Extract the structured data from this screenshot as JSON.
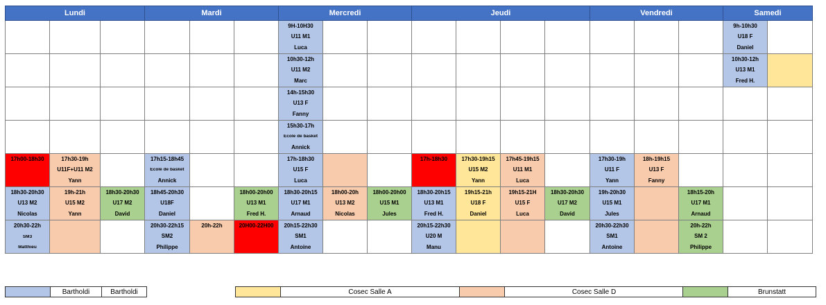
{
  "days": [
    "Lundi",
    "Mardi",
    "Mercredi",
    "Jeudi",
    "Vendredi",
    "Samedi"
  ],
  "colors": {
    "bartholdi": "#b4c6e7",
    "cosec_a": "#ffe699",
    "cosec_d": "#f8cbad",
    "brunstatt": "#a9d08e",
    "red": "#ff0000"
  },
  "rows": [
    [
      {
        "c": "",
        "t": []
      },
      {
        "c": "",
        "t": []
      },
      {
        "c": "",
        "t": []
      },
      {
        "c": "",
        "t": []
      },
      {
        "c": "",
        "t": []
      },
      {
        "c": "",
        "t": []
      },
      {
        "c": "bl",
        "t": [
          "9H-10H30",
          "U11 M1",
          "Luca"
        ]
      },
      {
        "c": "",
        "t": []
      },
      {
        "c": "",
        "t": []
      },
      {
        "c": "",
        "t": []
      },
      {
        "c": "",
        "t": []
      },
      {
        "c": "",
        "t": []
      },
      {
        "c": "",
        "t": []
      },
      {
        "c": "",
        "t": []
      },
      {
        "c": "",
        "t": []
      },
      {
        "c": "",
        "t": []
      },
      {
        "c": "bl",
        "t": [
          "9h-10h30",
          "U18 F",
          "Daniel"
        ]
      },
      {
        "c": "",
        "t": []
      }
    ],
    [
      {
        "c": "",
        "t": []
      },
      {
        "c": "",
        "t": []
      },
      {
        "c": "",
        "t": []
      },
      {
        "c": "",
        "t": []
      },
      {
        "c": "",
        "t": []
      },
      {
        "c": "",
        "t": []
      },
      {
        "c": "bl",
        "t": [
          "10h30-12h",
          "U11 M2",
          "Marc"
        ]
      },
      {
        "c": "",
        "t": []
      },
      {
        "c": "",
        "t": []
      },
      {
        "c": "",
        "t": []
      },
      {
        "c": "",
        "t": []
      },
      {
        "c": "",
        "t": []
      },
      {
        "c": "",
        "t": []
      },
      {
        "c": "",
        "t": []
      },
      {
        "c": "",
        "t": []
      },
      {
        "c": "",
        "t": []
      },
      {
        "c": "bl",
        "t": [
          "10h30-12h",
          "U13 M1",
          "Fred H."
        ]
      },
      {
        "c": "ye",
        "t": []
      }
    ],
    [
      {
        "c": "",
        "t": []
      },
      {
        "c": "",
        "t": []
      },
      {
        "c": "",
        "t": []
      },
      {
        "c": "",
        "t": []
      },
      {
        "c": "",
        "t": []
      },
      {
        "c": "",
        "t": []
      },
      {
        "c": "bl",
        "t": [
          "14h-15h30",
          "U13 F",
          "Fanny"
        ]
      },
      {
        "c": "",
        "t": []
      },
      {
        "c": "",
        "t": []
      },
      {
        "c": "",
        "t": []
      },
      {
        "c": "",
        "t": []
      },
      {
        "c": "",
        "t": []
      },
      {
        "c": "",
        "t": []
      },
      {
        "c": "",
        "t": []
      },
      {
        "c": "",
        "t": []
      },
      {
        "c": "",
        "t": []
      },
      {
        "c": "",
        "t": []
      },
      {
        "c": "",
        "t": []
      }
    ],
    [
      {
        "c": "",
        "t": []
      },
      {
        "c": "",
        "t": []
      },
      {
        "c": "",
        "t": []
      },
      {
        "c": "",
        "t": []
      },
      {
        "c": "",
        "t": []
      },
      {
        "c": "",
        "t": []
      },
      {
        "c": "bl",
        "t": [
          "15h30-17h",
          "Ecole de basket",
          "Annick"
        ],
        "s": 1
      },
      {
        "c": "",
        "t": []
      },
      {
        "c": "",
        "t": []
      },
      {
        "c": "",
        "t": []
      },
      {
        "c": "",
        "t": []
      },
      {
        "c": "",
        "t": []
      },
      {
        "c": "",
        "t": []
      },
      {
        "c": "",
        "t": []
      },
      {
        "c": "",
        "t": []
      },
      {
        "c": "",
        "t": []
      },
      {
        "c": "",
        "t": []
      },
      {
        "c": "",
        "t": []
      }
    ],
    [
      {
        "c": "rd",
        "t": [
          "17h00-18h30"
        ],
        "top": 1
      },
      {
        "c": "pe",
        "t": [
          "17h30-19h",
          "U11F+U11 M2",
          "Yann"
        ]
      },
      {
        "c": "",
        "t": []
      },
      {
        "c": "bl",
        "t": [
          "17h15-18h45",
          "Ecole de basket",
          "Annick"
        ],
        "s": 1
      },
      {
        "c": "",
        "t": []
      },
      {
        "c": "",
        "t": []
      },
      {
        "c": "bl",
        "t": [
          "17h-18h30",
          "U15 F",
          "Luca"
        ]
      },
      {
        "c": "pe",
        "t": []
      },
      {
        "c": "",
        "t": []
      },
      {
        "c": "rd",
        "t": [
          "17h-18h30"
        ],
        "top": 1
      },
      {
        "c": "ye",
        "t": [
          "17h30-19h15",
          "U15 M2",
          "Yann"
        ]
      },
      {
        "c": "pe",
        "t": [
          "17h45-19h15",
          "U11 M1",
          "Luca"
        ]
      },
      {
        "c": "",
        "t": []
      },
      {
        "c": "bl",
        "t": [
          "17h30-19h",
          "U11 F",
          "Yann"
        ]
      },
      {
        "c": "pe",
        "t": [
          "18h-19h15",
          "U13 F",
          "Fanny"
        ]
      },
      {
        "c": "",
        "t": []
      },
      {
        "c": "",
        "t": []
      },
      {
        "c": "",
        "t": []
      }
    ],
    [
      {
        "c": "bl",
        "t": [
          "18h30-20h30",
          "U13 M2",
          "Nicolas"
        ]
      },
      {
        "c": "pe",
        "t": [
          "19h-21h",
          "U15 M2",
          "Yann"
        ]
      },
      {
        "c": "gr",
        "t": [
          "18h30-20h30",
          "U17 M2",
          "David"
        ]
      },
      {
        "c": "bl",
        "t": [
          "18h45-20h30",
          "U18F",
          "Daniel"
        ]
      },
      {
        "c": "",
        "t": []
      },
      {
        "c": "gr",
        "t": [
          "18h00-20h00",
          "U13 M1",
          "Fred H."
        ]
      },
      {
        "c": "bl",
        "t": [
          "18h30-20h15",
          "U17 M1",
          "Arnaud"
        ]
      },
      {
        "c": "pe",
        "t": [
          "18h00-20h",
          "U13 M2",
          "Nicolas"
        ]
      },
      {
        "c": "gr",
        "t": [
          "18h00-20h00",
          "U15 M1",
          "Jules"
        ]
      },
      {
        "c": "bl",
        "t": [
          "18h30-20h15",
          "U13 M1",
          "Fred H."
        ]
      },
      {
        "c": "ye",
        "t": [
          "19h15-21h",
          "U18 F",
          "Daniel"
        ]
      },
      {
        "c": "pe",
        "t": [
          "19h15-21H",
          "U15 F",
          "Luca"
        ]
      },
      {
        "c": "gr",
        "t": [
          "18h30-20h30",
          "U17 M2",
          "David"
        ]
      },
      {
        "c": "bl",
        "t": [
          "19h-20h30",
          "U15 M1",
          "Jules"
        ]
      },
      {
        "c": "pe",
        "t": []
      },
      {
        "c": "gr",
        "t": [
          "18h15-20h",
          "U17 M1",
          "Arnaud"
        ]
      },
      {
        "c": "",
        "t": []
      },
      {
        "c": "",
        "t": []
      }
    ],
    [
      {
        "c": "bl",
        "t": [
          "20h30-22h",
          "SM3",
          "Matthieu"
        ],
        "s": 1
      },
      {
        "c": "pe",
        "t": []
      },
      {
        "c": "",
        "t": []
      },
      {
        "c": "bl",
        "t": [
          "20h30-22h15",
          "SM2",
          "Philippe"
        ]
      },
      {
        "c": "pe",
        "t": [
          "20h-22h"
        ],
        "top": 1
      },
      {
        "c": "rd",
        "t": [
          "20H00-22H00"
        ],
        "top": 1
      },
      {
        "c": "bl",
        "t": [
          "20h15-22h30",
          "SM1",
          "Antoine"
        ]
      },
      {
        "c": "",
        "t": []
      },
      {
        "c": "",
        "t": []
      },
      {
        "c": "bl",
        "t": [
          "20h15-22h30",
          "U20 M",
          "Manu"
        ]
      },
      {
        "c": "ye",
        "t": []
      },
      {
        "c": "pe",
        "t": []
      },
      {
        "c": "",
        "t": []
      },
      {
        "c": "bl",
        "t": [
          "20h30-22h30",
          "SM1",
          "Antoine"
        ]
      },
      {
        "c": "pe",
        "t": []
      },
      {
        "c": "gr",
        "t": [
          "20h-22h",
          "SM 2",
          "Philippe"
        ]
      },
      {
        "c": "",
        "t": []
      },
      {
        "c": "",
        "t": []
      }
    ]
  ],
  "legend": [
    {
      "color": "bl",
      "labels": [
        "Bartholdi",
        "Bartholdi"
      ]
    },
    {
      "color": "ye",
      "labels": [
        "Cosec Salle A"
      ]
    },
    {
      "color": "pe",
      "labels": [
        "Cosec Salle D"
      ]
    },
    {
      "color": "gr",
      "labels": [
        "Brunstatt"
      ]
    }
  ]
}
